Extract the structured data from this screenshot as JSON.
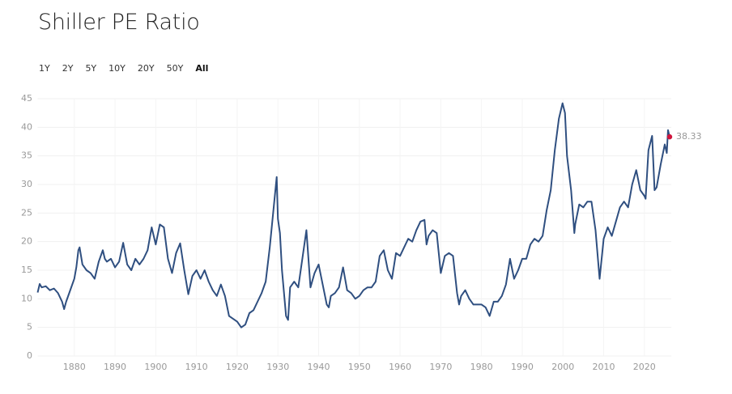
{
  "chart_data": {
    "type": "line",
    "title": "Shiller PE Ratio",
    "ranges": [
      "1Y",
      "2Y",
      "5Y",
      "10Y",
      "20Y",
      "50Y",
      "All"
    ],
    "selected_range": 6,
    "color": "#2f4f80",
    "end_marker_color": "#d0143c",
    "end_label": "38.33",
    "grid": true,
    "xlim": [
      1871,
      2026.6
    ],
    "xticks": [
      1880,
      1890,
      1900,
      1910,
      1920,
      1930,
      1940,
      1950,
      1960,
      1970,
      1980,
      1990,
      2000,
      2010,
      2020
    ],
    "ylim": [
      0,
      45
    ],
    "yticks": [
      0,
      5,
      10,
      15,
      20,
      25,
      30,
      35,
      40,
      45
    ],
    "x": [
      1871,
      1871.5,
      1872,
      1873,
      1874,
      1875,
      1876,
      1877,
      1877.5,
      1878,
      1879,
      1880,
      1880.5,
      1881,
      1881.3,
      1882,
      1883,
      1884,
      1885,
      1886,
      1887,
      1887.5,
      1888,
      1889,
      1890,
      1891,
      1892,
      1893,
      1894,
      1895,
      1896,
      1897,
      1898,
      1899,
      1900,
      1901,
      1902,
      1903,
      1904,
      1905,
      1906,
      1907,
      1908,
      1909,
      1910,
      1911,
      1912,
      1913,
      1914,
      1915,
      1916,
      1917,
      1918,
      1919,
      1920,
      1921,
      1922,
      1923,
      1924,
      1925,
      1926,
      1927,
      1928,
      1929.7,
      1930,
      1930.5,
      1931,
      1932,
      1932.5,
      1933,
      1934,
      1935,
      1936,
      1937,
      1938,
      1939,
      1940,
      1941,
      1942,
      1942.5,
      1943,
      1944,
      1945,
      1946,
      1947,
      1948,
      1949,
      1950,
      1951,
      1952,
      1953,
      1954,
      1955,
      1956,
      1957,
      1958,
      1959,
      1960,
      1961,
      1962,
      1963,
      1964,
      1965,
      1966,
      1966.5,
      1967,
      1968,
      1969,
      1970,
      1971,
      1972,
      1973,
      1974,
      1974.5,
      1975,
      1976,
      1977,
      1978,
      1979,
      1980,
      1981,
      1982,
      1983,
      1984,
      1985,
      1986,
      1987,
      1988,
      1989,
      1990,
      1991,
      1992,
      1993,
      1994,
      1995,
      1996,
      1997,
      1998,
      1999,
      1999.9,
      2000.5,
      2001,
      2002,
      2002.8,
      2003,
      2004,
      2005,
      2006,
      2007,
      2008,
      2009,
      2009.5,
      2010,
      2011,
      2012,
      2013,
      2014,
      2015,
      2016,
      2017,
      2018,
      2019,
      2020,
      2020.3,
      2021,
      2021.9,
      2022.5,
      2023,
      2024,
      2025,
      2025.5,
      2025.8,
      2026.2
    ],
    "values": [
      11.1,
      12.6,
      12.0,
      12.2,
      11.5,
      11.8,
      11.0,
      9.5,
      8.2,
      9.5,
      11.5,
      13.5,
      15.5,
      18.5,
      19.0,
      16.0,
      15.0,
      14.5,
      13.5,
      16.5,
      18.5,
      17.0,
      16.5,
      17.0,
      15.5,
      16.5,
      19.8,
      16.0,
      15.0,
      17.0,
      16.0,
      17.0,
      18.5,
      22.5,
      19.5,
      23.0,
      22.5,
      17.0,
      14.5,
      18.0,
      19.7,
      15.0,
      10.8,
      14.0,
      15.0,
      13.5,
      15.0,
      13.0,
      11.5,
      10.5,
      12.5,
      10.5,
      7.0,
      6.5,
      6.0,
      5.0,
      5.5,
      7.5,
      8.0,
      9.5,
      11.0,
      13.0,
      19.0,
      31.3,
      24.0,
      21.5,
      15.0,
      7.0,
      6.3,
      12.0,
      13.0,
      12.0,
      17.0,
      22.0,
      12.0,
      14.5,
      16.0,
      12.5,
      9.0,
      8.5,
      10.5,
      11.0,
      12.0,
      15.5,
      11.5,
      11.0,
      10.0,
      10.5,
      11.5,
      12.0,
      12.0,
      13.0,
      17.5,
      18.5,
      15.0,
      13.5,
      18.0,
      17.5,
      19.0,
      20.5,
      20.0,
      22.0,
      23.5,
      23.8,
      19.5,
      21.0,
      22.0,
      21.5,
      14.5,
      17.5,
      18.0,
      17.5,
      11.0,
      9.0,
      10.5,
      11.5,
      10.0,
      9.0,
      9.0,
      9.0,
      8.5,
      7.0,
      9.5,
      9.5,
      10.5,
      12.5,
      17.0,
      13.5,
      15.0,
      17.0,
      17.0,
      19.5,
      20.5,
      20.0,
      21.0,
      25.5,
      29.0,
      36.0,
      41.5,
      44.2,
      42.5,
      35.0,
      29.0,
      21.5,
      23.0,
      26.5,
      26.0,
      27.0,
      27.0,
      22.0,
      13.5,
      17.0,
      20.5,
      22.5,
      21.0,
      23.5,
      26.0,
      27.0,
      26.0,
      30.0,
      32.5,
      29.0,
      28.0,
      27.5,
      36.0,
      38.5,
      29.0,
      29.5,
      33.5,
      37.0,
      35.5,
      39.5,
      38.33
    ]
  }
}
